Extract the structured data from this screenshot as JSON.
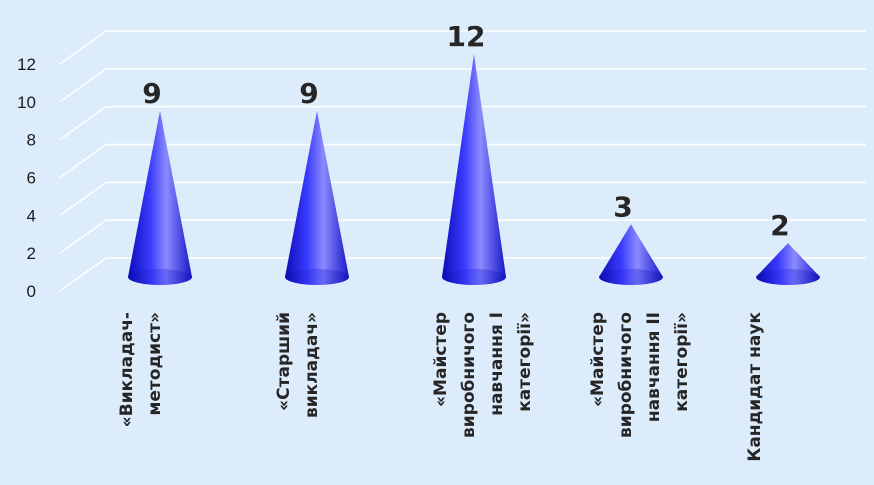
{
  "chart_data": {
    "type": "bar",
    "shape": "cone",
    "style": "3d",
    "title": "",
    "xlabel": "",
    "ylabel": "",
    "categories": [
      [
        "«Викладач-",
        "методист»"
      ],
      [
        "«Старший",
        "викладач»"
      ],
      [
        "«Майстер",
        "виробничого",
        "навчання І",
        "категорії»"
      ],
      [
        "«Майстер",
        "виробничого",
        "навчання ІІ",
        "категорії»"
      ],
      [
        "Кандидат наук"
      ]
    ],
    "values": [
      9,
      9,
      12,
      3,
      2
    ],
    "ylim": [
      0,
      12
    ],
    "yticks": [
      0,
      2,
      4,
      6,
      8,
      10,
      12
    ],
    "grid": true,
    "legend": "none",
    "colors": {
      "background": "#dcecfb",
      "cone_dark": "#0c0cb8",
      "cone_mid": "#3b3bff",
      "cone_light": "#8b8bff",
      "grid": "#ffffff"
    }
  }
}
